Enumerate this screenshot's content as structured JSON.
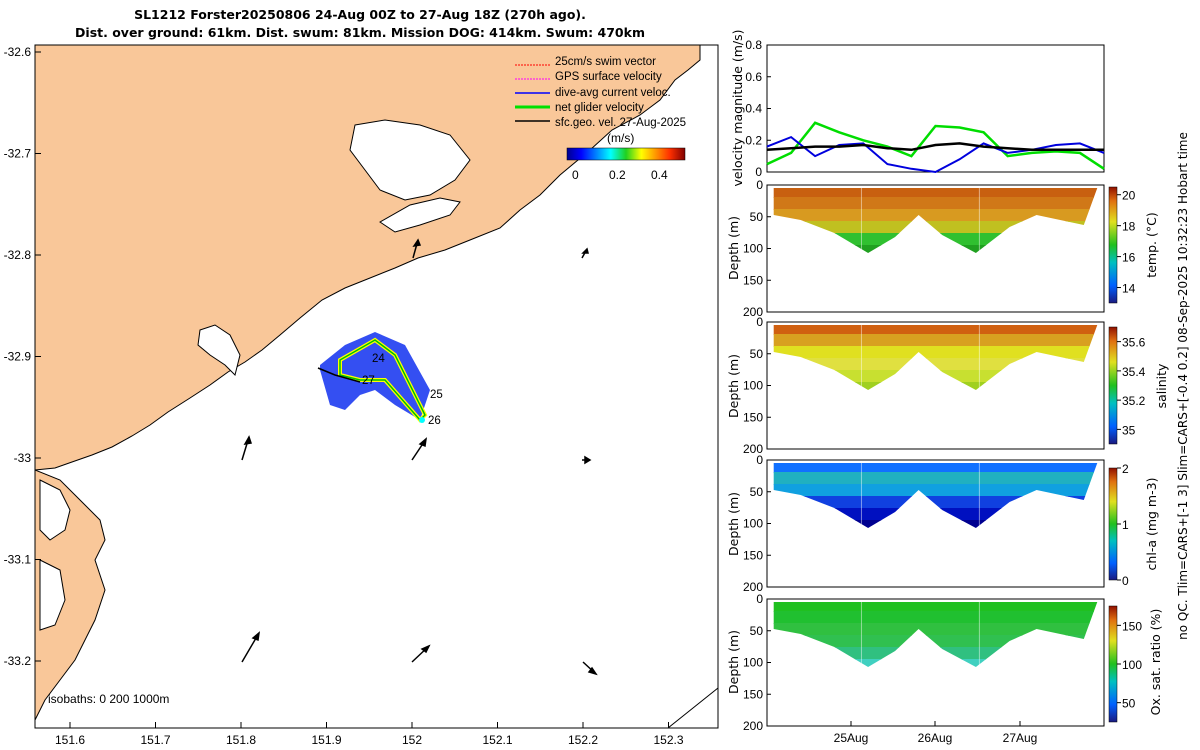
{
  "title": {
    "line1": "SL1212 Forster20250806 24-Aug 00Z to 27-Aug 18Z (270h ago).",
    "line2": "Dist. over ground: 61km. Dist. swum: 81km. Mission DOG: 414km. Swum: 470km"
  },
  "colors": {
    "land": "#f9c799",
    "sea": "#ffffff",
    "coast": "#000000",
    "track_glider": "#00e000",
    "track_dive": "#0000ff",
    "track_yellow": "#ffff00",
    "series_green": "#00dd00",
    "series_blue": "#0000dd",
    "series_black": "#000000"
  },
  "map": {
    "legend": {
      "items": [
        "25cm/s swim vector",
        "GPS surface velocity",
        "dive-avg current veloc.",
        "net glider velocity",
        "sfc.geo. vel. 27-Aug-2025"
      ],
      "colors": [
        "#ff0000",
        "#ff00ff",
        "#0000ff",
        "#00e000",
        "#000000"
      ],
      "colorbar_unit": "(m/s)",
      "colorbar_ticks": [
        "0",
        "0.2",
        "0.4"
      ]
    },
    "x_ticks": [
      "151.6",
      "151.7",
      "151.8",
      "151.9",
      "152",
      "152.1",
      "152.2",
      "152.3"
    ],
    "y_ticks": [
      "-32.6",
      "-32.7",
      "-32.8",
      "-32.9",
      "-33",
      "-33.1",
      "-33.2"
    ],
    "day_labels": [
      "24",
      "25",
      "26",
      "27"
    ],
    "isobaths_label": "isobaths: 0   200  1000m"
  },
  "chart_data": [
    {
      "type": "line",
      "title": "",
      "xlabel": "",
      "ylabel": "velocity magnitude (m/s)",
      "ylim": [
        0,
        0.8
      ],
      "y_ticks": [
        "0",
        "0.2",
        "0.4",
        "0.6",
        "0.8"
      ],
      "x": [
        0,
        0.25,
        0.5,
        0.75,
        1.0,
        1.25,
        1.5,
        1.75,
        2.0,
        2.25,
        2.5,
        2.75,
        3.0,
        3.25,
        3.5
      ],
      "series": [
        {
          "name": "net glider velocity",
          "values": [
            0.05,
            0.12,
            0.31,
            0.25,
            0.2,
            0.16,
            0.1,
            0.29,
            0.28,
            0.25,
            0.1,
            0.12,
            0.13,
            0.12,
            0.02
          ]
        },
        {
          "name": "dive-avg current veloc.",
          "values": [
            0.16,
            0.22,
            0.1,
            0.17,
            0.18,
            0.05,
            0.02,
            0.0,
            0.08,
            0.18,
            0.12,
            0.14,
            0.17,
            0.18,
            0.12
          ]
        },
        {
          "name": "sfc.geo. vel.",
          "values": [
            0.14,
            0.15,
            0.16,
            0.16,
            0.17,
            0.15,
            0.14,
            0.17,
            0.18,
            0.16,
            0.15,
            0.14,
            0.14,
            0.14,
            0.14
          ]
        }
      ]
    },
    {
      "type": "heatmap",
      "xlabel": "",
      "ylabel": "Depth (m)",
      "ylim": [
        200,
        0
      ],
      "y_ticks": [
        "0",
        "50",
        "100",
        "150",
        "200"
      ],
      "colorbar_label": "temp. (°C)",
      "colorbar_ticks": [
        "14",
        "16",
        "18",
        "20"
      ],
      "clim": [
        13,
        20.5
      ],
      "profile_depths_max": [
        80,
        110,
        75,
        110,
        50,
        20
      ]
    },
    {
      "type": "heatmap",
      "xlabel": "",
      "ylabel": "Depth (m)",
      "ylim": [
        200,
        0
      ],
      "y_ticks": [
        "0",
        "50",
        "100",
        "150",
        "200"
      ],
      "colorbar_label": "salinity",
      "colorbar_ticks": [
        "35",
        "35.2",
        "35.4",
        "35.6"
      ],
      "clim": [
        34.9,
        35.7
      ]
    },
    {
      "type": "heatmap",
      "xlabel": "",
      "ylabel": "Depth (m)",
      "ylim": [
        200,
        0
      ],
      "y_ticks": [
        "0",
        "50",
        "100",
        "150",
        "200"
      ],
      "colorbar_label": "chl-a (mg m-3)",
      "colorbar_ticks": [
        "0",
        "1",
        "2"
      ],
      "clim": [
        0,
        2
      ]
    },
    {
      "type": "heatmap",
      "xlabel": "",
      "ylabel": "Depth (m)",
      "ylim": [
        200,
        0
      ],
      "y_ticks": [
        "0",
        "50",
        "100",
        "150",
        "200"
      ],
      "x_ticks": [
        "25Aug",
        "26Aug",
        "27Aug"
      ],
      "colorbar_label": "Ox. sat. ratio (%)",
      "colorbar_ticks": [
        "50",
        "100",
        "150"
      ],
      "clim": [
        25,
        175
      ]
    }
  ],
  "side_caption": "no QC. Tlim=CARS+[-1 3] Slim=CARS+[-0.4 0.2] 08-Sep-2025 10:32:23 Hobart time"
}
